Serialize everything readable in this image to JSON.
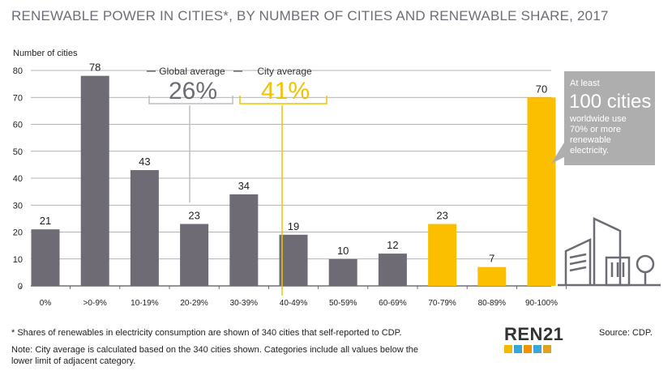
{
  "title": "RENEWABLE POWER IN CITIES*, BY NUMBER OF CITIES AND RENEWABLE SHARE, 2017",
  "chart_data": {
    "type": "bar",
    "title": "RENEWABLE POWER IN CITIES*, BY NUMBER OF CITIES AND RENEWABLE SHARE, 2017",
    "ylabel": "Number of cities",
    "xlabel": "",
    "ylim": [
      0,
      80
    ],
    "yticks": [
      0,
      10,
      20,
      30,
      40,
      50,
      60,
      70,
      80
    ],
    "categories": [
      "0%",
      ">0-9%",
      "10-19%",
      "20-29%",
      "30-39%",
      "40-49%",
      "50-59%",
      "60-69%",
      "70-79%",
      "80-89%",
      "90-100%"
    ],
    "values": [
      21,
      78,
      43,
      23,
      34,
      19,
      10,
      12,
      23,
      7,
      70
    ],
    "highlighted": [
      false,
      false,
      false,
      false,
      false,
      false,
      false,
      false,
      true,
      true,
      true
    ],
    "colors": {
      "default": "#6e6b75",
      "highlight": "#fbbf00",
      "global": "#bdbdbd",
      "city": "#f2c200"
    },
    "annotations": {
      "global_average": {
        "label": "Global average",
        "value": "26%",
        "category": "20-29%"
      },
      "city_average": {
        "label": "City average",
        "value": "41%",
        "category": "40-49%"
      },
      "callout": {
        "line1": "At least",
        "big": "100 cities",
        "rest": "worldwide use 70% or more renewable electricity."
      }
    }
  },
  "footnote": "* Shares of renewables in electricity consumption are shown of 340 cities that self-reported to CDP.",
  "note": "Note: City average is calculated based on the 340 cities shown. Categories include all values below the lower limit of adjacent category.",
  "logo": "REN21",
  "source": "Source: CDP."
}
